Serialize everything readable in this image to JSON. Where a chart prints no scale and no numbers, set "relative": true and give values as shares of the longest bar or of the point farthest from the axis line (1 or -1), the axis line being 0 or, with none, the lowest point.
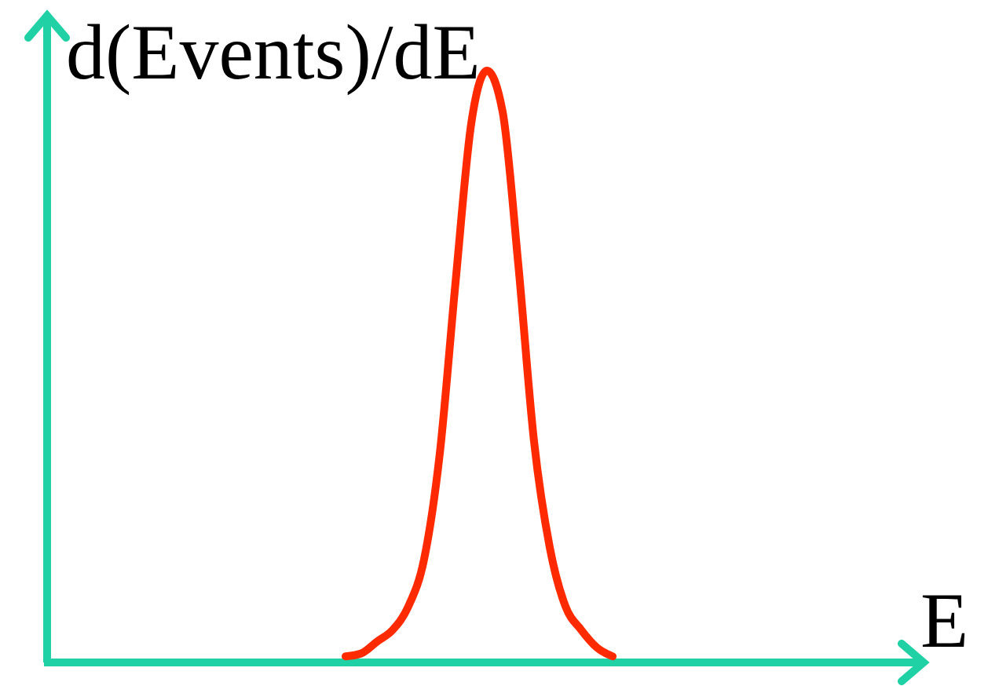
{
  "chart_data": {
    "type": "line",
    "relative": true,
    "xlabel": "E",
    "ylabel": "d(Events)/dE",
    "marker": "none",
    "line_style": "solid",
    "categories": [
      null,
      null,
      null,
      null,
      null,
      null,
      null,
      null,
      null,
      null,
      null,
      null,
      null,
      null,
      null,
      null,
      null,
      null,
      null,
      null,
      null,
      null,
      null,
      null,
      null,
      null,
      null,
      null,
      null,
      null,
      null,
      null,
      null,
      null,
      null,
      null,
      null,
      null,
      null,
      null,
      null,
      null,
      null,
      null,
      null,
      null,
      null,
      null,
      null,
      null,
      null,
      null,
      null,
      null,
      null,
      null
    ],
    "series": [
      {
        "color": "#ff2a00",
        "values": [
          null,
          null,
          null,
          null,
          null,
          null,
          null,
          null,
          null,
          null,
          null,
          null,
          null,
          null,
          null,
          null,
          null,
          null,
          null,
          0.005,
          0.01,
          0.03,
          0.05,
          0.09,
          0.17,
          0.35,
          0.64,
          0.91,
          1,
          0.93,
          0.67,
          0.37,
          0.19,
          0.09,
          0.05,
          0.02,
          0.005,
          null,
          null,
          null,
          null,
          null,
          null,
          null,
          null,
          null,
          null,
          null,
          null,
          null,
          null,
          null,
          null,
          null,
          null,
          null
        ]
      }
    ]
  }
}
